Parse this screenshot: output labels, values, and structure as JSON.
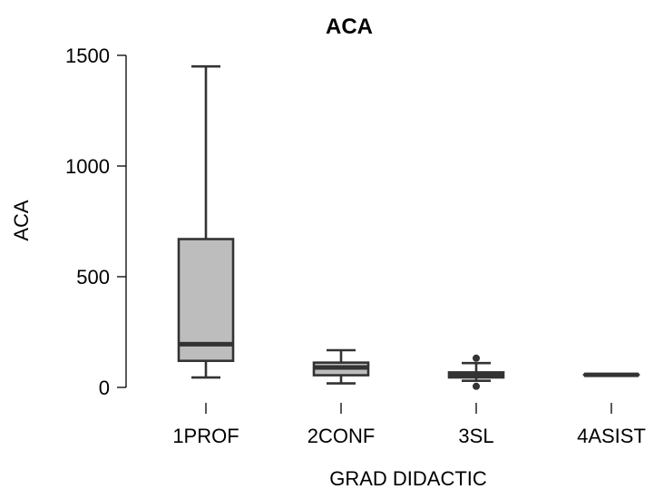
{
  "chart_data": {
    "type": "box",
    "title": "ACA",
    "xlabel": "GRAD DIDACTIC",
    "ylabel": "ACA",
    "ylim": [
      0,
      1500
    ],
    "yticks": [
      0,
      500,
      1000,
      1500
    ],
    "grid": false,
    "colors": {
      "box_fill": "#bdbdbd",
      "box_stroke": "#333333"
    },
    "categories": [
      "1PROF",
      "2CONF",
      "3SL",
      "4ASIST"
    ],
    "boxes": [
      {
        "category": "1PROF",
        "min": 45,
        "q1": 120,
        "median": 195,
        "q3": 670,
        "max": 1450,
        "outliers": []
      },
      {
        "category": "2CONF",
        "min": 18,
        "q1": 55,
        "median": 90,
        "q3": 112,
        "max": 168,
        "outliers": []
      },
      {
        "category": "3SL",
        "min": 30,
        "q1": 45,
        "median": 55,
        "q3": 68,
        "max": 110,
        "outliers": [
          5,
          132
        ]
      },
      {
        "category": "4ASIST",
        "min": 57,
        "q1": 57,
        "median": 57,
        "q3": 57,
        "max": 57,
        "outliers": []
      }
    ]
  }
}
